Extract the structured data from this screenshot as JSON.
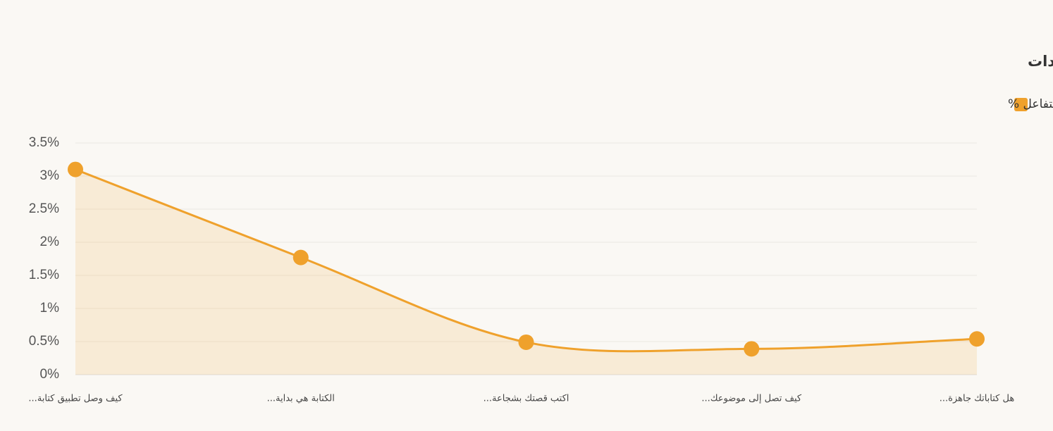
{
  "chart_data": {
    "type": "line",
    "title": "نسبة التفاعل (إعجابات + تعليقات) من المشاهدات",
    "categories": [
      "كيف وصل تطبيق كتابة...",
      "الكتابة هي بداية...",
      "اكتب قصتك بشجاعة...",
      "كيف تصل إلى موضوعك...",
      "هل كتاباتك جاهزة..."
    ],
    "series": [
      {
        "name": "معدّل التفاعل %",
        "color": "#efa12c",
        "values": [
          3.1,
          1.77,
          0.49,
          0.39,
          0.54
        ]
      }
    ],
    "ylim": [
      0,
      3.5
    ],
    "yticks": [
      {
        "value": 0,
        "label": "0%"
      },
      {
        "value": 0.5,
        "label": "0.5%"
      },
      {
        "value": 1,
        "label": "1%"
      },
      {
        "value": 1.5,
        "label": "1.5%"
      },
      {
        "value": 2,
        "label": "2%"
      },
      {
        "value": 2.5,
        "label": "2.5%"
      },
      {
        "value": 3,
        "label": "3%"
      },
      {
        "value": 3.5,
        "label": "3.5%"
      }
    ],
    "grid": true,
    "legend": "top-right",
    "area": true
  }
}
